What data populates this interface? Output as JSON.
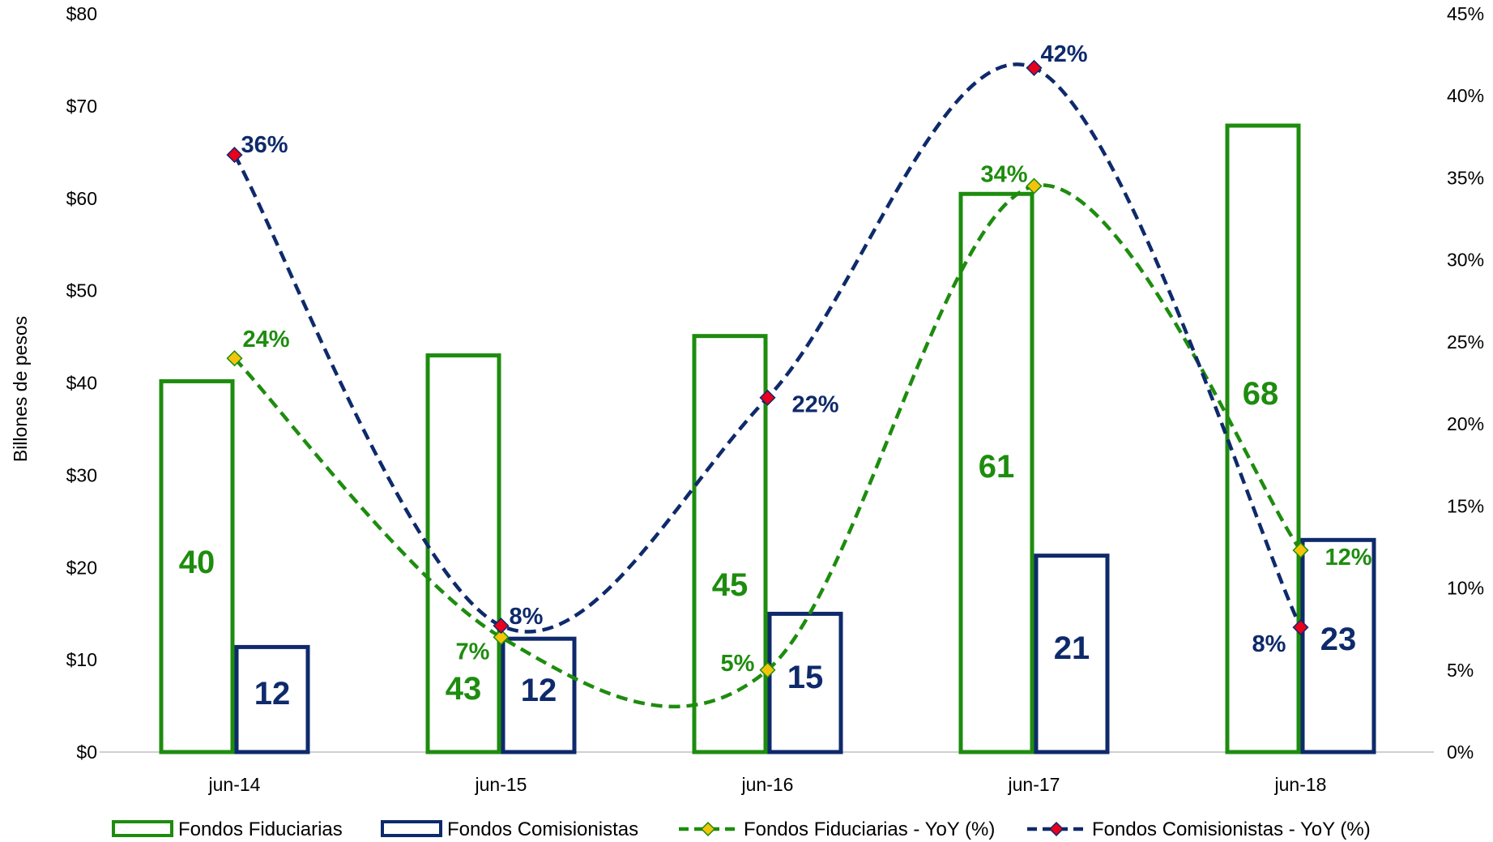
{
  "chart_data": {
    "type": "bar",
    "categories": [
      "jun-14",
      "jun-15",
      "jun-16",
      "jun-17",
      "jun-18"
    ],
    "ylabel": "Billones de pesos",
    "ylim": [
      0,
      80
    ],
    "y_ticks": [
      "$0",
      "$10",
      "$20",
      "$30",
      "$40",
      "$50",
      "$60",
      "$70",
      "$80"
    ],
    "y2lim": [
      0,
      45
    ],
    "y2_ticks": [
      "0%",
      "5%",
      "10%",
      "15%",
      "20%",
      "25%",
      "30%",
      "35%",
      "40%",
      "45%"
    ],
    "grid": false,
    "legend_position": "bottom",
    "series": [
      {
        "name": "Fondos Fiduciarias",
        "kind": "bar",
        "axis": "left",
        "color": "#1E8C0F",
        "values": [
          40.4,
          43.2,
          45.3,
          60.7,
          68.1
        ],
        "labels": [
          "40",
          "43",
          "45",
          "61",
          "68"
        ]
      },
      {
        "name": "Fondos Comisionistas",
        "kind": "bar",
        "axis": "left",
        "color": "#0E2A6B",
        "values": [
          11.6,
          12.5,
          15.2,
          21.5,
          23.2
        ],
        "labels": [
          "12",
          "12",
          "15",
          "21",
          "23"
        ]
      },
      {
        "name": "Fondos Fiduciarias - YoY (%)",
        "kind": "line",
        "axis": "right",
        "color": "#1E8C0F",
        "marker_color": "#F2C40A",
        "values": [
          24,
          7,
          5,
          34.5,
          12.3
        ],
        "labels": [
          "24%",
          "7%",
          "5%",
          "34%",
          "12%"
        ]
      },
      {
        "name": "Fondos Comisionistas - YoY (%)",
        "kind": "line",
        "axis": "right",
        "color": "#0E2A6B",
        "marker_color": "#E8001C",
        "values": [
          36.4,
          7.7,
          21.6,
          41.7,
          7.6
        ],
        "labels": [
          "36%",
          "8%",
          "22%",
          "42%",
          "8%"
        ]
      }
    ]
  }
}
